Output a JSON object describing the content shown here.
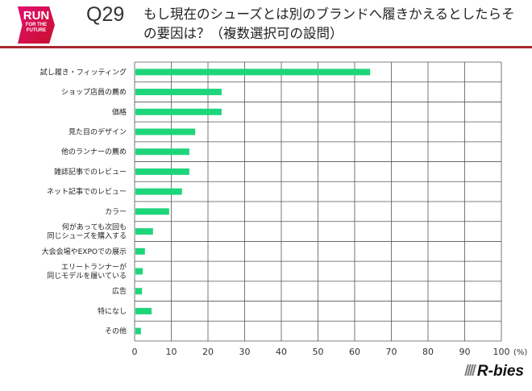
{
  "logo": {
    "line1": "RUN",
    "line2": "FOR THE",
    "line3": "FUTURE"
  },
  "question_number": "Q29",
  "title": "もし現在のシューズとは別のブランドへ履きかえるとしたらその要因は？（複数選択可の設問）",
  "brand": "R-bies",
  "chart_data": {
    "type": "bar",
    "orientation": "horizontal",
    "categories": [
      "試し履き・フィッティング",
      "ショップ店員の薦め",
      "価格",
      "見た目のデザイン",
      "他のランナーの薦め",
      "雑誌記事でのレビュー",
      "ネット記事でのレビュー",
      "カラー",
      "何があっても次回も\n同じシューズを購入する",
      "大会会場やEXPOでの展示",
      "エリートランナーが\n同じモデルを履いている",
      "広告",
      "特になし",
      "その他"
    ],
    "values": [
      64,
      23.5,
      23.5,
      16.3,
      14.7,
      14.7,
      12.7,
      9.2,
      4.8,
      2.6,
      2,
      1.8,
      4.4,
      1.5
    ],
    "xlim": [
      0,
      100
    ],
    "xticks": [
      "0",
      "10",
      "20",
      "30",
      "40",
      "50",
      "60",
      "70",
      "80",
      "90",
      "100"
    ],
    "xunit": "(%)",
    "grid": true,
    "bar_color": "#1ed67a"
  }
}
